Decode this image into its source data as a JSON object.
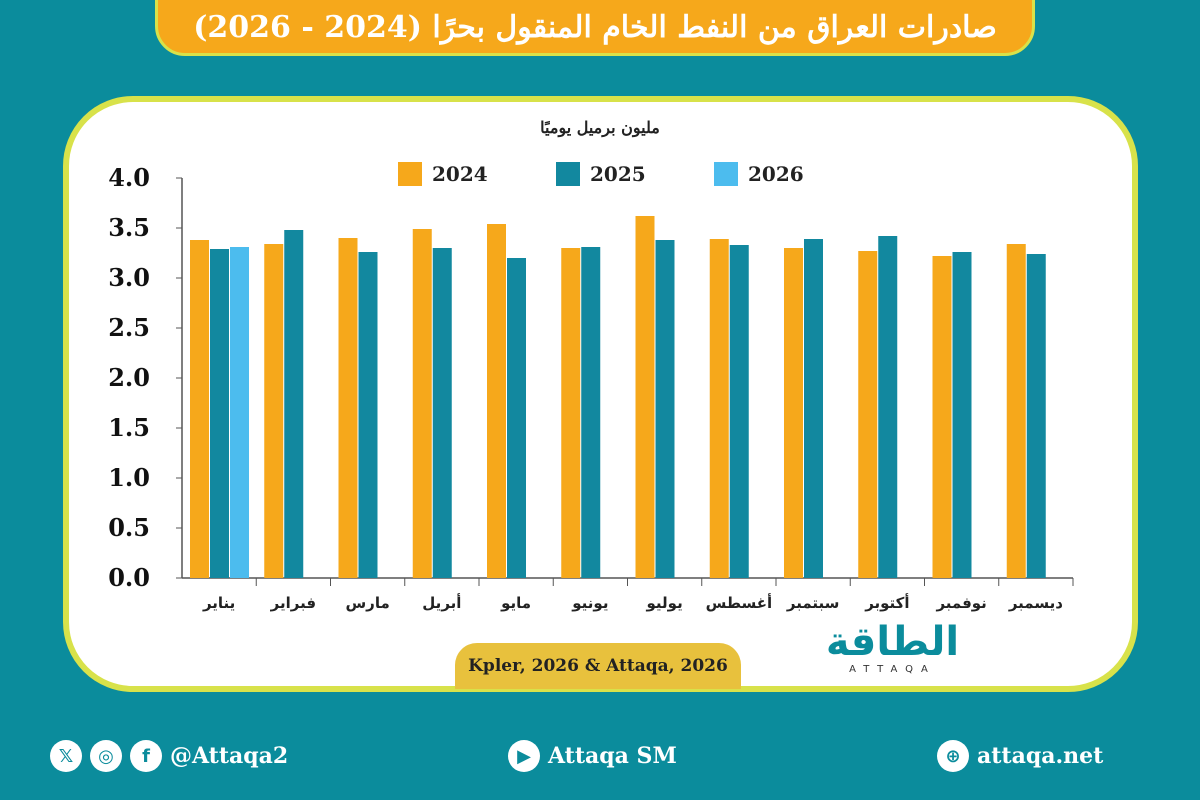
{
  "title": "صادرات العراق من النفط الخام المنقول بحرًا (2024 - 2026)",
  "chart_data": {
    "type": "bar",
    "ylabel": "مليون برميل يوميًا",
    "ylim": [
      0,
      4
    ],
    "yticks": [
      "0.0",
      "0.5",
      "1.0",
      "1.5",
      "2.0",
      "2.5",
      "3.0",
      "3.5",
      "4.0"
    ],
    "categories": [
      "يناير",
      "فبراير",
      "مارس",
      "أبريل",
      "مايو",
      "يونيو",
      "يوليو",
      "أغسطس",
      "سبتمبر",
      "أكتوبر",
      "نوفمبر",
      "ديسمبر"
    ],
    "legend_position": "top",
    "grid": false,
    "series": [
      {
        "name": "2024",
        "color": "#f6a81b",
        "values": [
          3.38,
          3.34,
          3.4,
          3.49,
          3.54,
          3.3,
          3.62,
          3.39,
          3.3,
          3.27,
          3.22,
          3.34
        ]
      },
      {
        "name": "2025",
        "color": "#12889f",
        "values": [
          3.29,
          3.48,
          3.26,
          3.3,
          3.2,
          3.31,
          3.38,
          3.33,
          3.39,
          3.42,
          3.26,
          3.24
        ]
      },
      {
        "name": "2026",
        "color": "#4cbcee",
        "values": [
          3.31,
          null,
          null,
          null,
          null,
          null,
          null,
          null,
          null,
          null,
          null,
          null
        ]
      }
    ]
  },
  "source": "Kpler, 2026 & Attaqa, 2026",
  "logo": {
    "ar": "الطاقة",
    "en": "ATTAQA"
  },
  "footer": {
    "social": "@Attaqa2",
    "youtube": "Attaqa SM",
    "website": "attaqa.net"
  }
}
